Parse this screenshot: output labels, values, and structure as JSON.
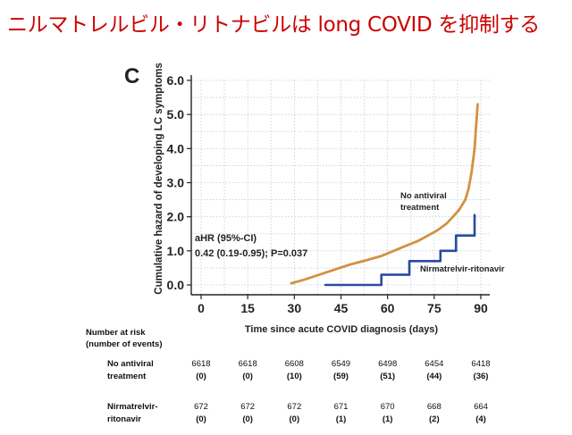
{
  "slide": {
    "title": "ニルマトレルビル・リトナビルは long COVID を抑制する"
  },
  "chart_data": {
    "type": "line",
    "panel_label": "C",
    "xlabel": "Time since acute COVID diagnosis (days)",
    "ylabel": "Cumulative hazard of developing LC symptoms",
    "xlim": [
      0,
      90
    ],
    "ylim": [
      0,
      6.0
    ],
    "x_ticks": [
      "0",
      "15",
      "30",
      "45",
      "60",
      "75",
      "90"
    ],
    "y_ticks": [
      "0.0",
      "1.0",
      "2.0",
      "3.0",
      "4.0",
      "5.0",
      "6.0"
    ],
    "grid": true,
    "annotation": {
      "line1": "aHR (95%-CI)",
      "line2": "0.42 (0.19-0.95); P=0.037"
    },
    "series": [
      {
        "name": "No antiviral treatment",
        "label_line1": "No antiviral",
        "label_line2": "treatment",
        "color": "#d4913f",
        "points": [
          [
            29,
            0.05
          ],
          [
            33,
            0.15
          ],
          [
            38,
            0.3
          ],
          [
            43,
            0.45
          ],
          [
            48,
            0.6
          ],
          [
            53,
            0.72
          ],
          [
            58,
            0.85
          ],
          [
            62,
            1.0
          ],
          [
            66,
            1.15
          ],
          [
            70,
            1.3
          ],
          [
            73,
            1.45
          ],
          [
            76,
            1.6
          ],
          [
            79,
            1.8
          ],
          [
            81,
            2.0
          ],
          [
            83,
            2.2
          ],
          [
            85,
            2.5
          ],
          [
            86,
            2.8
          ],
          [
            87,
            3.3
          ],
          [
            88,
            4.0
          ],
          [
            88.5,
            4.7
          ],
          [
            89,
            5.3
          ]
        ]
      },
      {
        "name": "Nirmatrelvir-ritonavir",
        "label_line1": "Nirmatrelvir-ritonavir",
        "color": "#2b4aa0",
        "points": [
          [
            40,
            0.0
          ],
          [
            58,
            0.0
          ],
          [
            58,
            0.3
          ],
          [
            67,
            0.3
          ],
          [
            67,
            0.7
          ],
          [
            77,
            0.7
          ],
          [
            77,
            1.0
          ],
          [
            82,
            1.0
          ],
          [
            82,
            1.45
          ],
          [
            88,
            1.45
          ],
          [
            88,
            2.05
          ]
        ]
      }
    ],
    "risk_table": {
      "header_line1": "Number at risk",
      "header_line2": "(number of events)",
      "timepoints": [
        0,
        15,
        30,
        45,
        60,
        75,
        90
      ],
      "rows": [
        {
          "label_line1": "No antiviral",
          "label_line2": "treatment",
          "at_risk": [
            "6618",
            "6618",
            "6608",
            "6549",
            "6498",
            "6454",
            "6418"
          ],
          "events": [
            "(0)",
            "(0)",
            "(10)",
            "(59)",
            "(51)",
            "(44)",
            "(36)"
          ]
        },
        {
          "label_line1": "Nirmatrelvir-",
          "label_line2": "ritonavir",
          "at_risk": [
            "672",
            "672",
            "672",
            "671",
            "670",
            "668",
            "664"
          ],
          "events": [
            "(0)",
            "(0)",
            "(0)",
            "(1)",
            "(1)",
            "(2)",
            "(4)"
          ]
        }
      ]
    }
  }
}
